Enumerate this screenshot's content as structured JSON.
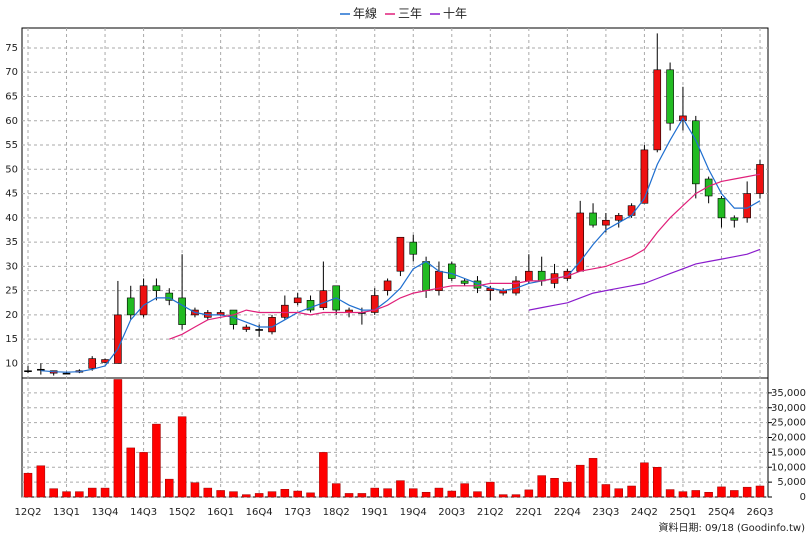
{
  "chart_data": {
    "type": "candlestick",
    "categories": [
      "12Q2",
      null,
      null,
      "13Q1",
      null,
      null,
      "13Q4",
      null,
      null,
      "14Q3",
      null,
      null,
      "15Q2",
      null,
      null,
      "16Q1",
      null,
      null,
      "16Q4",
      null,
      null,
      "17Q3",
      null,
      null,
      "18Q2",
      null,
      null,
      "19Q1",
      null,
      null,
      "19Q4",
      null,
      null,
      "20Q3",
      null,
      null,
      "21Q2",
      null,
      null,
      "22Q1",
      null,
      null,
      "22Q4",
      null,
      null,
      "23Q3",
      null,
      null,
      "24Q2",
      null,
      null,
      "25Q1",
      null,
      null,
      "25Q4",
      null,
      null,
      "26Q3"
    ],
    "open": [
      8.5,
      8.8,
      8,
      8,
      8.2,
      9,
      10.2,
      10,
      23.5,
      20,
      26,
      24.5,
      23.5,
      20,
      19.5,
      20,
      21,
      17,
      17,
      16.5,
      19.5,
      22.5,
      23,
      21.5,
      26,
      20.5,
      20.5,
      20.5,
      25,
      29,
      35,
      31,
      25,
      30.5,
      27,
      27,
      25,
      24.5,
      24.5,
      27,
      29,
      26.5,
      27.5,
      29,
      41,
      38.5,
      39.5,
      40.5,
      43,
      54,
      70.5,
      60,
      60,
      48,
      44,
      40,
      40,
      45
    ],
    "high": [
      9.5,
      10,
      8.5,
      8.3,
      8.8,
      11.5,
      11,
      27,
      26,
      27.5,
      27.5,
      25.5,
      32.5,
      21.5,
      21,
      21,
      21,
      18,
      18,
      20,
      24,
      24.5,
      24,
      31,
      26,
      21.5,
      21.5,
      25.5,
      27.5,
      36,
      36.5,
      32,
      31,
      31,
      27.5,
      28,
      26,
      25.5,
      28,
      32.5,
      32,
      30.5,
      29.5,
      43.5,
      43,
      41,
      41,
      43,
      55,
      78,
      72,
      67,
      61,
      48.5,
      44.5,
      40.5,
      47.5,
      52
    ],
    "low": [
      8,
      7.7,
      7.5,
      7.8,
      8,
      8.5,
      10,
      10,
      19,
      19.5,
      23,
      22,
      17,
      19.5,
      19,
      19.8,
      17,
      16.5,
      15.5,
      16,
      19,
      22,
      20.5,
      21,
      20,
      19.5,
      18,
      20,
      24,
      28,
      31,
      23.5,
      24,
      27,
      26,
      24.5,
      23,
      24,
      24,
      26.5,
      26,
      25.5,
      27,
      29,
      38,
      37,
      38,
      40,
      43,
      53.5,
      58,
      58,
      44,
      43,
      38,
      38,
      39,
      44
    ],
    "close": [
      8.5,
      8.8,
      8.5,
      8,
      8.5,
      11,
      10.8,
      20,
      20,
      26,
      25,
      23,
      18,
      21,
      20.5,
      20.5,
      18,
      17.5,
      17,
      19.5,
      22,
      23.5,
      21,
      25,
      21,
      21,
      20.5,
      24,
      27,
      36,
      32.5,
      25,
      29,
      27.5,
      26.5,
      25.5,
      25.5,
      25,
      27,
      29,
      27,
      28.5,
      29,
      41,
      38.5,
      39.5,
      40.5,
      42.5,
      54,
      70.5,
      59.5,
      61,
      47,
      44.5,
      40,
      39.5,
      45,
      51
    ],
    "up_color": "#ee1111",
    "down_color": "#22bb22",
    "ylim": [
      7,
      78.7
    ],
    "yticks": [
      10,
      15,
      20,
      25,
      30,
      35,
      40,
      45,
      50,
      55,
      60,
      65,
      70,
      75
    ],
    "grid": true,
    "legend": "top",
    "lines": [
      {
        "name": "年線",
        "color": "#1f6fd0",
        "values": [
          null,
          8.5,
          8.3,
          8.2,
          8.3,
          8.8,
          9.5,
          13,
          19,
          22,
          23.5,
          23.5,
          22,
          20.5,
          20,
          20,
          19.5,
          18.5,
          17.5,
          17.5,
          19,
          20.5,
          21.5,
          22.5,
          23.5,
          22,
          21,
          21,
          23,
          25.5,
          29.5,
          31,
          29,
          28.5,
          27.5,
          26.5,
          25.5,
          25,
          25.5,
          26.5,
          27,
          27.5,
          28,
          31,
          34.5,
          37.5,
          39,
          40.5,
          44,
          51,
          56,
          60.5,
          56,
          50,
          45,
          42,
          42,
          43.5
        ]
      },
      {
        "name": "三年",
        "color": "#e0207a",
        "values": [
          null,
          null,
          null,
          null,
          null,
          null,
          null,
          null,
          null,
          null,
          null,
          15,
          16,
          17.5,
          19,
          19.5,
          20,
          21,
          20.5,
          20.5,
          20.5,
          20.5,
          20,
          20.5,
          20.5,
          20.5,
          20.5,
          21,
          22,
          23.5,
          24.5,
          25,
          25.5,
          26,
          26,
          26,
          26.5,
          26.5,
          26.5,
          27,
          27,
          27.5,
          28,
          29,
          29.5,
          30,
          31,
          32,
          33.5,
          37,
          40,
          42.5,
          45,
          46.5,
          47.5,
          48,
          48.5,
          49
        ]
      },
      {
        "name": "十年",
        "color": "#8a1ccc",
        "values": [
          null,
          null,
          null,
          null,
          null,
          null,
          null,
          null,
          null,
          null,
          null,
          null,
          null,
          null,
          null,
          null,
          null,
          null,
          null,
          null,
          null,
          null,
          null,
          null,
          null,
          null,
          null,
          null,
          null,
          null,
          null,
          null,
          null,
          null,
          null,
          null,
          null,
          null,
          null,
          21,
          21.5,
          22,
          22.5,
          23.5,
          24.5,
          25,
          25.5,
          26,
          26.5,
          27.5,
          28.5,
          29.5,
          30.5,
          31,
          31.5,
          32,
          32.5,
          33.5
        ]
      }
    ],
    "volume": {
      "color": "#ff0000",
      "values": [
        8000,
        10500,
        2800,
        1800,
        1800,
        3000,
        3000,
        39500,
        16500,
        15000,
        24500,
        6000,
        27000,
        4800,
        3000,
        2200,
        1800,
        800,
        1200,
        1800,
        2600,
        2000,
        1400,
        15000,
        4500,
        1200,
        1200,
        3000,
        2800,
        5500,
        2800,
        1600,
        3000,
        2000,
        4500,
        1800,
        5000,
        800,
        800,
        2400,
        7200,
        6300,
        5000,
        10700,
        13000,
        4200,
        2800,
        3700,
        11500,
        10000,
        2500,
        1800,
        2200,
        1600,
        3400,
        2200,
        3300,
        3700
      ],
      "ylim": [
        0,
        40000
      ],
      "yticks": [
        0,
        {
          "value": 5000,
          "label": "5,000"
        },
        {
          "value": 10000,
          "label": "10,000"
        },
        {
          "value": 15000,
          "label": "15,000"
        },
        {
          "value": 20000,
          "label": "20,000"
        },
        {
          "value": 25000,
          "label": "25,000"
        },
        {
          "value": 30000,
          "label": "30,000"
        },
        {
          "value": 35000,
          "label": "35,000"
        }
      ]
    },
    "footer": "資料日期: 09/18 (Goodinfo.tw)"
  }
}
